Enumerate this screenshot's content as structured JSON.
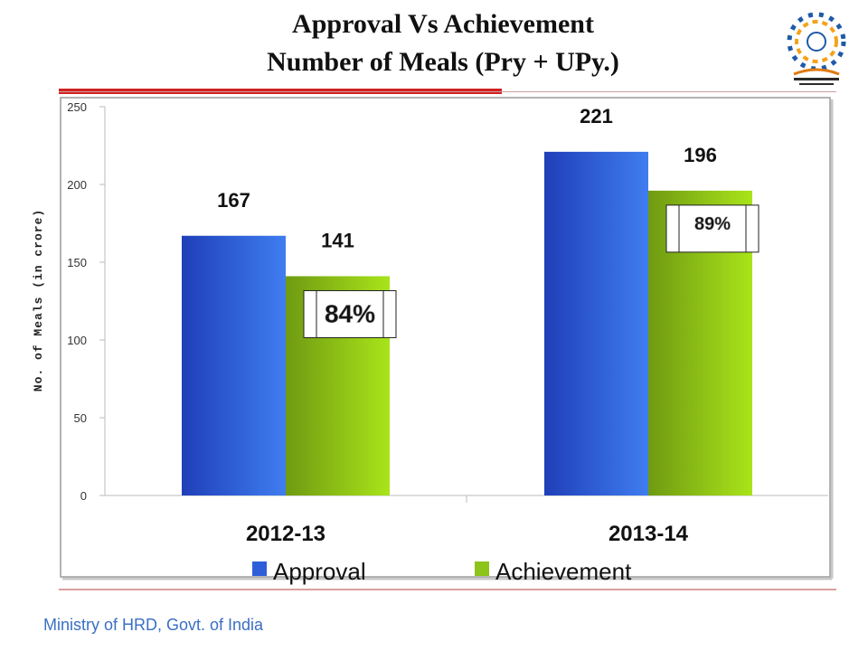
{
  "header": {
    "title_line1": "Approval  Vs  Achievement",
    "title_line2": "Number   of    Meals (Pry + UPy.)"
  },
  "logo": {
    "icon": "mid-day-meal-scheme-logo"
  },
  "footer": {
    "text": "Ministry of HRD, Govt. of India"
  },
  "colors": {
    "approval": "#2f5fd8",
    "achievement": "#8cc41a",
    "accent_line": "#d42020",
    "footer_text": "#3b6fc4"
  },
  "chart_data": {
    "type": "bar",
    "categories": [
      "2012-13",
      "2013-14"
    ],
    "series": [
      {
        "name": "Approval",
        "values": [
          167,
          221
        ]
      },
      {
        "name": "Achievement",
        "values": [
          141,
          196
        ]
      }
    ],
    "value_labels": [
      [
        "167",
        "221"
      ],
      [
        "141",
        "196"
      ]
    ],
    "percent_labels": [
      "84%",
      "89%"
    ],
    "ylabel": "No. of Meals (in crore)",
    "yticks": [
      "0",
      "50",
      "100",
      "150",
      "200",
      "250"
    ],
    "ylim": [
      0,
      250
    ],
    "grid": false,
    "legend": "bottom"
  }
}
